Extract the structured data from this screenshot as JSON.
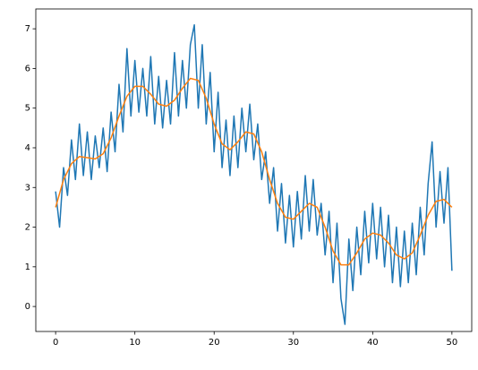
{
  "chart_data": {
    "type": "line",
    "series": [
      {
        "color": "#1f77b4",
        "x": [
          0,
          0.5,
          1,
          1.5,
          2,
          2.5,
          3,
          3.5,
          4,
          4.5,
          5,
          5.5,
          6,
          6.5,
          7,
          7.5,
          8,
          8.5,
          9,
          9.5,
          10,
          10.5,
          11,
          11.5,
          12,
          12.5,
          13,
          13.5,
          14,
          14.5,
          15,
          15.5,
          16,
          16.5,
          17,
          17.5,
          18,
          18.5,
          19,
          19.5,
          20,
          20.5,
          21,
          21.5,
          22,
          22.5,
          23,
          23.5,
          24,
          24.5,
          25,
          25.5,
          26,
          26.5,
          27,
          27.5,
          28,
          28.5,
          29,
          29.5,
          30,
          30.5,
          31,
          31.5,
          32,
          32.5,
          33,
          33.5,
          34,
          34.5,
          35,
          35.5,
          36,
          36.5,
          37,
          37.5,
          38,
          38.5,
          39,
          39.5,
          40,
          40.5,
          41,
          41.5,
          42,
          42.5,
          43,
          43.5,
          44,
          44.5,
          45,
          45.5,
          46,
          46.5,
          47,
          47.5,
          48,
          48.5,
          49,
          49.5,
          50
        ],
        "values": [
          2.9,
          2.0,
          3.5,
          2.8,
          4.2,
          3.2,
          4.6,
          3.3,
          4.4,
          3.2,
          4.3,
          3.5,
          4.5,
          3.4,
          4.9,
          3.9,
          5.6,
          4.4,
          6.5,
          4.8,
          6.2,
          4.9,
          6.0,
          4.8,
          6.3,
          4.6,
          5.8,
          4.5,
          5.7,
          4.6,
          6.4,
          4.8,
          6.2,
          5.0,
          6.6,
          7.1,
          5.0,
          6.6,
          4.6,
          5.9,
          3.9,
          5.4,
          3.5,
          4.7,
          3.3,
          4.8,
          3.5,
          5.0,
          3.9,
          5.1,
          3.7,
          4.6,
          3.2,
          3.9,
          2.6,
          3.5,
          1.9,
          3.1,
          1.6,
          2.8,
          1.5,
          2.9,
          1.7,
          3.3,
          1.9,
          3.2,
          1.8,
          2.6,
          1.3,
          2.4,
          0.6,
          2.1,
          0.2,
          -0.45,
          1.7,
          0.4,
          2.0,
          0.8,
          2.4,
          1.1,
          2.6,
          1.2,
          2.5,
          1.0,
          2.3,
          0.6,
          2.0,
          0.5,
          1.9,
          0.6,
          2.1,
          0.8,
          2.5,
          1.3,
          3.1,
          4.15,
          2.0,
          3.4,
          2.1,
          3.5,
          0.9
        ]
      },
      {
        "color": "#ff7f0e",
        "x": [
          0,
          1,
          2,
          3,
          4,
          5,
          6,
          7,
          8,
          9,
          10,
          11,
          12,
          13,
          14,
          15,
          16,
          17,
          18,
          19,
          20,
          21,
          22,
          23,
          24,
          25,
          26,
          27,
          28,
          29,
          30,
          31,
          32,
          33,
          34,
          35,
          36,
          37,
          38,
          39,
          40,
          41,
          42,
          43,
          44,
          45,
          46,
          47,
          48,
          49,
          50
        ],
        "values": [
          2.5,
          3.2,
          3.6,
          3.78,
          3.75,
          3.72,
          3.85,
          4.25,
          4.8,
          5.3,
          5.55,
          5.55,
          5.35,
          5.1,
          5.05,
          5.2,
          5.5,
          5.75,
          5.7,
          5.25,
          4.6,
          4.1,
          3.95,
          4.15,
          4.4,
          4.35,
          3.9,
          3.2,
          2.6,
          2.25,
          2.2,
          2.4,
          2.6,
          2.5,
          2.0,
          1.4,
          1.05,
          1.05,
          1.35,
          1.7,
          1.85,
          1.8,
          1.6,
          1.3,
          1.2,
          1.35,
          1.8,
          2.3,
          2.65,
          2.7,
          2.5
        ]
      }
    ],
    "xlim": [
      -2.5,
      52.5
    ],
    "xticks": [
      0,
      10,
      20,
      30,
      40,
      50
    ],
    "ylim": [
      -0.63,
      7.5
    ],
    "yticks": [
      0,
      1,
      2,
      3,
      4,
      5,
      6,
      7
    ]
  }
}
